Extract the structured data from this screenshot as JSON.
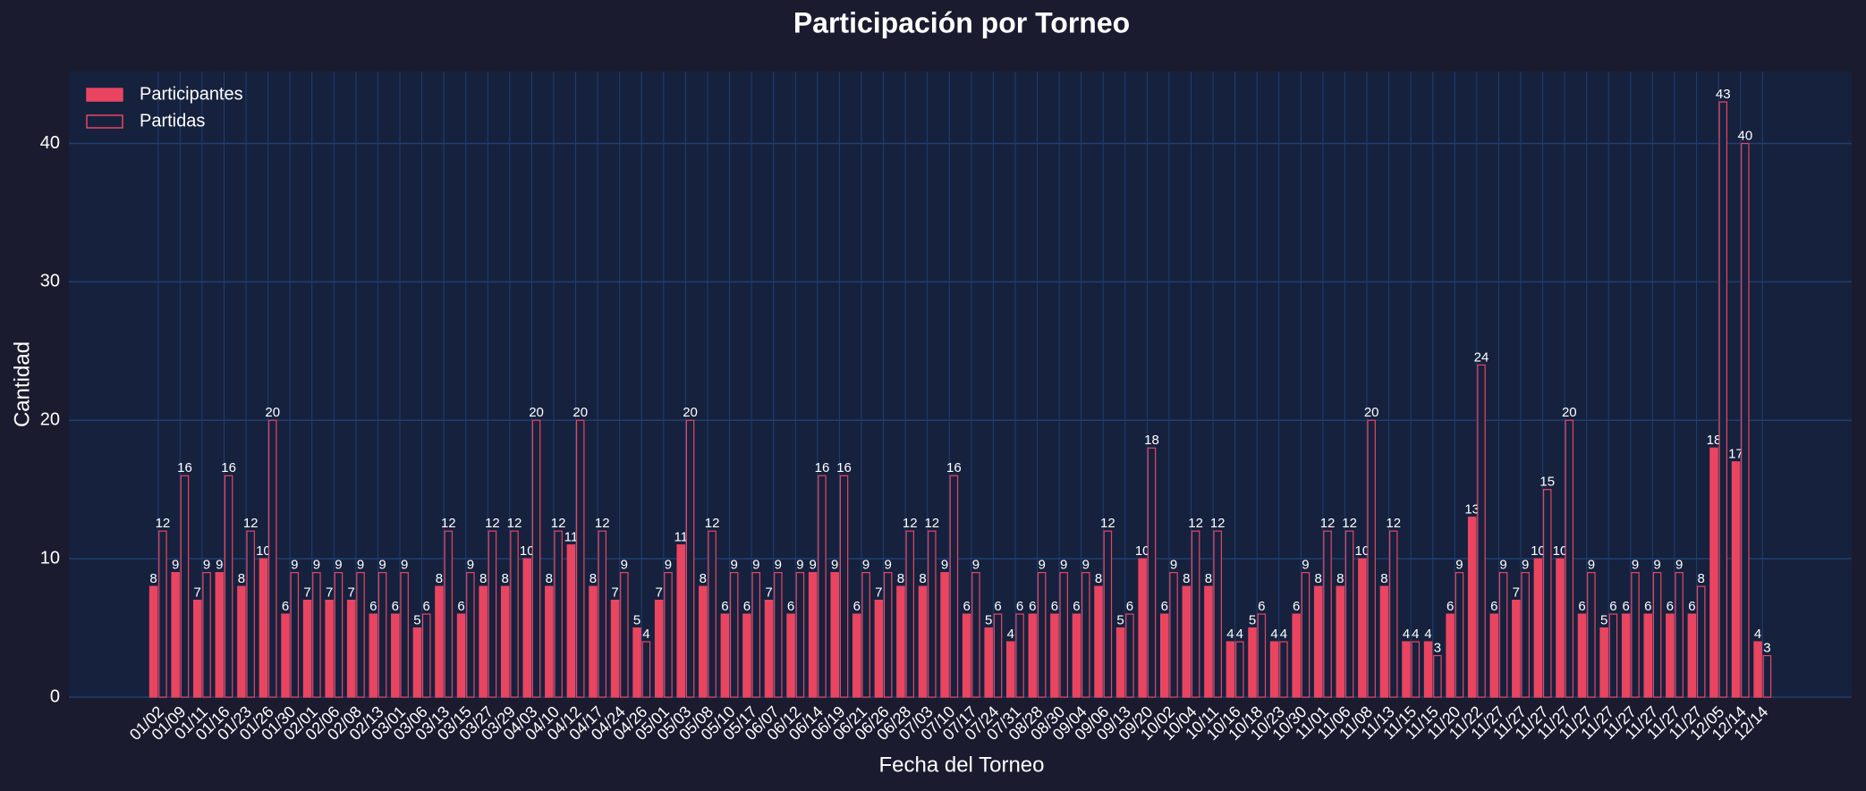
{
  "chart_data": {
    "type": "bar",
    "title": "Participación por Torneo",
    "x_label": "Fecha del Torneo",
    "y_label": "Cantidad",
    "categories": [
      "01/02",
      "01/09",
      "01/11",
      "01/16",
      "01/23",
      "01/26",
      "01/30",
      "02/01",
      "02/06",
      "02/08",
      "02/13",
      "03/01",
      "03/06",
      "03/13",
      "03/15",
      "03/27",
      "03/29",
      "04/03",
      "04/10",
      "04/12",
      "04/17",
      "04/24",
      "04/26",
      "05/01",
      "05/03",
      "05/08",
      "05/10",
      "05/17",
      "06/07",
      "06/12",
      "06/14",
      "06/19",
      "06/21",
      "06/26",
      "06/28",
      "07/03",
      "07/10",
      "07/17",
      "07/24",
      "07/31",
      "08/28",
      "08/30",
      "09/04",
      "09/06",
      "09/13",
      "09/20",
      "10/02",
      "10/04",
      "10/11",
      "10/16",
      "10/18",
      "10/23",
      "10/30",
      "11/01",
      "11/06",
      "11/08",
      "11/13",
      "11/15",
      "11/15",
      "11/20",
      "11/22",
      "11/27",
      "11/27",
      "11/27",
      "11/27",
      "11/27",
      "11/27",
      "11/27",
      "11/27",
      "11/27",
      "11/27",
      "12/05",
      "12/14",
      "12/14"
    ],
    "series": [
      {
        "name": "Participantes",
        "color": "#e94560",
        "fill": "#e94560",
        "values": [
          8,
          9,
          7,
          9,
          8,
          10,
          6,
          7,
          7,
          7,
          6,
          6,
          5,
          8,
          6,
          8,
          8,
          10,
          8,
          11,
          8,
          7,
          5,
          7,
          11,
          8,
          6,
          6,
          7,
          6,
          9,
          9,
          6,
          7,
          8,
          8,
          9,
          6,
          5,
          4,
          6,
          6,
          6,
          8,
          5,
          10,
          6,
          8,
          8,
          4,
          5,
          4,
          6,
          8,
          8,
          10,
          8,
          4,
          4,
          6,
          13,
          6,
          7,
          10,
          10,
          6,
          5,
          6,
          6,
          6,
          6,
          18,
          17,
          4
        ]
      },
      {
        "name": "Partidas",
        "color": "#e94560",
        "fill": "#16213e",
        "values": [
          12,
          16,
          9,
          16,
          12,
          20,
          9,
          9,
          9,
          9,
          9,
          9,
          6,
          12,
          9,
          12,
          12,
          20,
          12,
          20,
          12,
          9,
          4,
          9,
          20,
          12,
          9,
          9,
          9,
          9,
          16,
          16,
          9,
          9,
          12,
          12,
          16,
          9,
          6,
          6,
          9,
          9,
          9,
          12,
          6,
          18,
          9,
          12,
          12,
          4,
          6,
          4,
          9,
          12,
          12,
          20,
          12,
          4,
          3,
          9,
          24,
          9,
          9,
          15,
          20,
          9,
          6,
          9,
          9,
          9,
          8,
          43,
          40,
          3
        ]
      }
    ],
    "ylim": [
      0,
      45.2
    ],
    "yticks": [
      0,
      10,
      20,
      30,
      40
    ],
    "grid": true,
    "legend": "upper left"
  }
}
